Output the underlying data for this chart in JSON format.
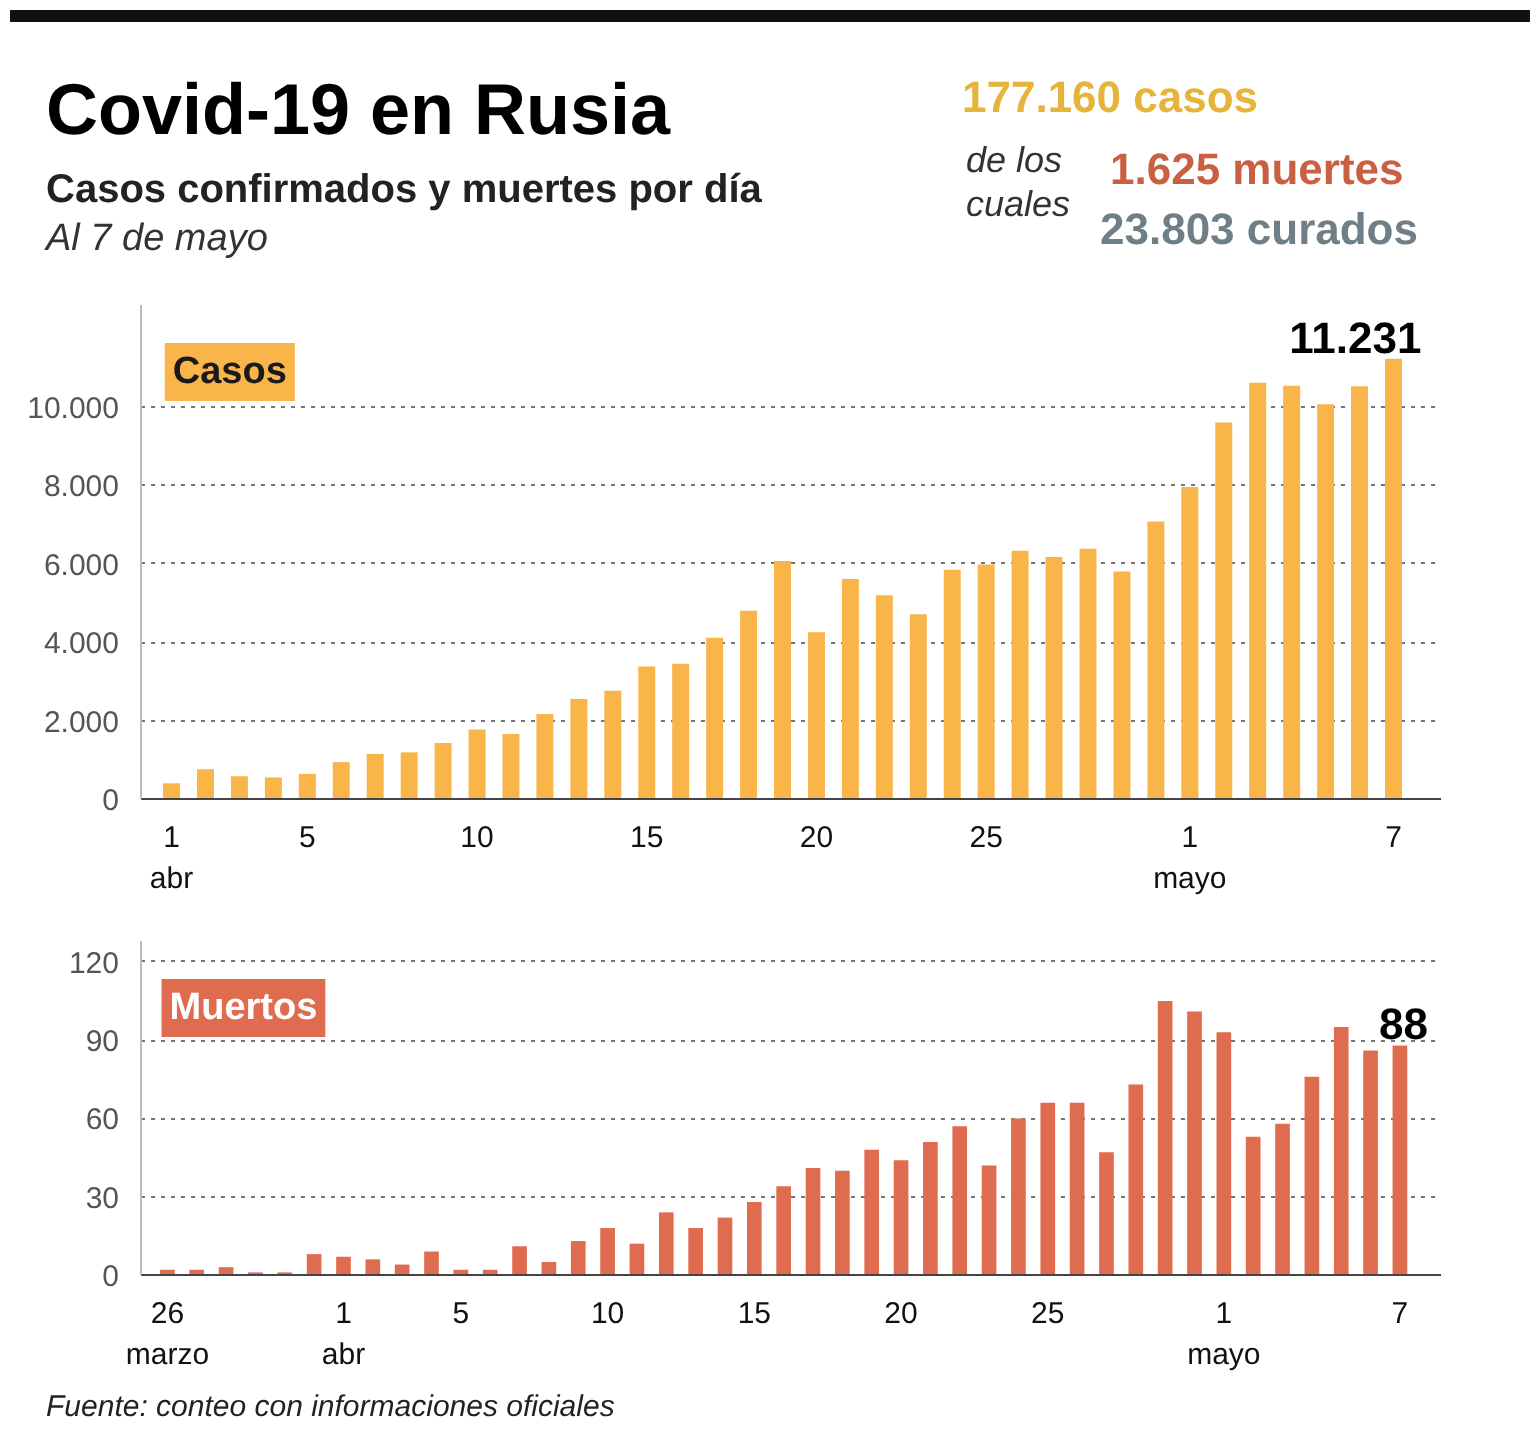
{
  "chart_data": [
    {
      "type": "bar",
      "title": "Covid-19 en Rusia",
      "subtitle": "Casos confirmados y muertes por día",
      "annotations": [
        "Al 7 de mayo",
        "177.160 casos",
        "de los cuales",
        "1.625 muertes",
        "23.803 curados"
      ],
      "categories": [
        "1\nabr",
        null,
        null,
        null,
        "5",
        null,
        null,
        null,
        null,
        "10",
        null,
        null,
        null,
        null,
        "15",
        null,
        null,
        null,
        null,
        "20",
        null,
        null,
        null,
        null,
        "25",
        null,
        null,
        null,
        null,
        null,
        "1\nmayo",
        null,
        null,
        null,
        null,
        null,
        "7"
      ],
      "series": [
        {
          "name": "Casos",
          "color": "#f9b54a",
          "values": [
            400,
            760,
            580,
            550,
            640,
            940,
            1150,
            1190,
            1430,
            1770,
            1660,
            2170,
            2550,
            2760,
            3380,
            3450,
            4110,
            4800,
            6070,
            4250,
            5610,
            5200,
            4710,
            5850,
            5980,
            6330,
            6170,
            6380,
            5800,
            7080,
            7960,
            9600,
            10620,
            10540,
            10070,
            10530,
            11231
          ],
          "value_labels": [
            null,
            null,
            null,
            null,
            null,
            null,
            null,
            null,
            null,
            null,
            null,
            null,
            null,
            null,
            null,
            null,
            null,
            null,
            null,
            null,
            null,
            null,
            null,
            null,
            null,
            null,
            null,
            null,
            null,
            null,
            null,
            null,
            null,
            null,
            null,
            null,
            "11.231"
          ]
        }
      ],
      "ylim": [
        0,
        12600
      ],
      "yticks": [
        0,
        {
          "value": 2000,
          "label": "2.000"
        },
        {
          "value": 4000,
          "label": "4.000"
        },
        {
          "value": 6000,
          "label": "6.000"
        },
        {
          "value": 8000,
          "label": "8.000"
        },
        {
          "value": 10000,
          "label": "10.000"
        }
      ],
      "grid": "y"
    },
    {
      "type": "bar",
      "annotations": [
        "Fuente: conteo con informaciones oficiales"
      ],
      "categories": [
        "26\nmarzo",
        null,
        null,
        null,
        null,
        null,
        "1\nabr",
        null,
        null,
        null,
        "5",
        null,
        null,
        null,
        null,
        "10",
        null,
        null,
        null,
        null,
        "15",
        null,
        null,
        null,
        null,
        "20",
        null,
        null,
        null,
        null,
        "25",
        null,
        null,
        null,
        null,
        null,
        "1\nmayo",
        null,
        null,
        null,
        null,
        null,
        "7"
      ],
      "series": [
        {
          "name": "Muertos",
          "color": "#e06c50",
          "values": [
            2,
            2,
            3,
            1,
            1,
            8,
            7,
            6,
            4,
            9,
            2,
            2,
            11,
            5,
            13,
            18,
            12,
            24,
            18,
            22,
            28,
            34,
            41,
            40,
            48,
            44,
            51,
            57,
            42,
            60,
            66,
            66,
            47,
            73,
            105,
            101,
            93,
            53,
            58,
            76,
            95,
            86,
            88
          ],
          "value_labels": [
            null,
            null,
            null,
            null,
            null,
            null,
            null,
            null,
            null,
            null,
            null,
            null,
            null,
            null,
            null,
            null,
            null,
            null,
            null,
            null,
            null,
            null,
            null,
            null,
            null,
            null,
            null,
            null,
            null,
            null,
            null,
            null,
            null,
            null,
            null,
            null,
            null,
            null,
            null,
            null,
            null,
            null,
            "88"
          ]
        }
      ],
      "ylim": [
        0,
        128
      ],
      "yticks": [
        0,
        30,
        60,
        90,
        120
      ],
      "grid": "y"
    }
  ]
}
